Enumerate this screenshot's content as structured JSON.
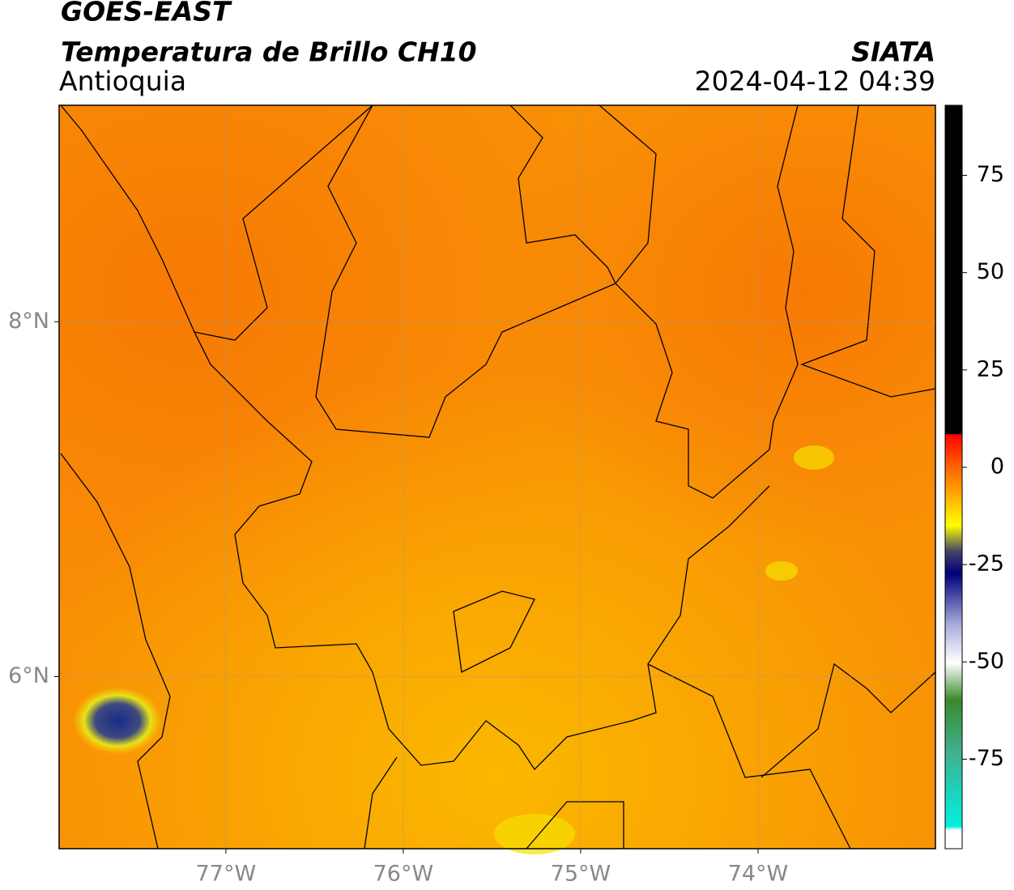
{
  "header": {
    "line1": "GOES-EAST",
    "line2": "Temperatura de Brillo CH10",
    "region": "Antioquia",
    "source": "SIATA",
    "datetime": "2024-04-12 04:39"
  },
  "map": {
    "xlim": [
      -77.94,
      -73.0
    ],
    "ylim": [
      5.03,
      9.22
    ],
    "xticks": [
      {
        "value": -77,
        "label": "77°W"
      },
      {
        "value": -76,
        "label": "76°W"
      },
      {
        "value": -75,
        "label": "75°W"
      },
      {
        "value": -74,
        "label": "74°W"
      }
    ],
    "yticks": [
      {
        "value": 8,
        "label": "8°N"
      },
      {
        "value": 6,
        "label": "6°N"
      }
    ]
  },
  "colorbar": {
    "lim": [
      -98,
      93
    ],
    "ticks": [
      75,
      50,
      25,
      0,
      -25,
      -50,
      -75
    ]
  }
}
